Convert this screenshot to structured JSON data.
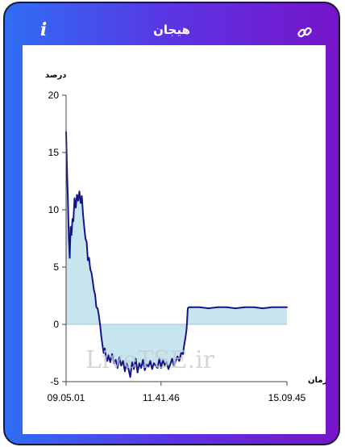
{
  "app": {
    "title": "هیجان",
    "info_icon": "info-icon",
    "link_icon": "link-icon"
  },
  "colors": {
    "gradient_start": "#2f6ef5",
    "gradient_end": "#7714c9",
    "line": "#14148c",
    "fill": "#c7e5ef"
  },
  "chart_data": {
    "type": "area",
    "title": "",
    "ylabel": "درصد",
    "xlabel": "زمان",
    "ylim": [
      -5,
      20
    ],
    "yticks": [
      20,
      15,
      10,
      5,
      0,
      -5
    ],
    "xtick_labels": [
      "09.05.01",
      "11.41.46",
      "15.09.45"
    ],
    "xlim": [
      "09.05.01",
      "15.09.45"
    ],
    "baseline": 0,
    "watermark": "LiveTSE.ir",
    "grid": false,
    "series": [
      {
        "x": [
          "09.05.01",
          "09.06.30",
          "09.08.00",
          "09.09.30",
          "09.11.00",
          "09.12.30",
          "09.14.00",
          "09.15.30",
          "09.17.00",
          "09.19.00",
          "09.21.00",
          "09.23.00",
          "09.25.00",
          "09.27.00",
          "09.29.00",
          "09.31.00",
          "09.33.00",
          "09.35.00",
          "09.37.00",
          "09.39.00",
          "09.41.00",
          "09.43.00",
          "09.45.00",
          "09.47.00",
          "09.49.00",
          "09.51.00",
          "09.53.00",
          "09.55.00",
          "09.57.00",
          "09.59.00",
          "10.01.00",
          "10.03.00",
          "10.05.00",
          "10.07.00",
          "10.09.00",
          "10.11.00",
          "10.13.00",
          "10.15.00",
          "10.18.00",
          "10.21.00",
          "10.24.00",
          "10.27.00",
          "10.30.00",
          "10.33.00",
          "10.36.00",
          "10.39.00",
          "10.42.00",
          "10.45.00",
          "10.48.00",
          "10.51.00",
          "10.54.00",
          "10.57.00",
          "11.00.00",
          "11.03.00",
          "11.06.00",
          "11.09.00",
          "11.12.00",
          "11.15.00",
          "11.18.00",
          "11.21.00",
          "11.24.00",
          "11.27.00",
          "11.30.00",
          "11.33.00",
          "11.36.00",
          "11.39.00",
          "11.41.46",
          "11.45.00",
          "11.48.00",
          "11.51.00",
          "11.54.00",
          "11.57.00",
          "12.00.00",
          "12.03.00",
          "12.06.00",
          "12.09.00",
          "12.12.00",
          "12.15.00",
          "12.18.00",
          "12.20.00",
          "12.22.00",
          "12.24.00",
          "12.26.00",
          "12.28.00",
          "12.30.00",
          "12.45.00",
          "13.00.00",
          "13.15.00",
          "13.30.00",
          "13.45.00",
          "14.00.00",
          "14.15.00",
          "14.30.00",
          "14.45.00",
          "15.00.00",
          "15.09.45"
        ],
        "y": [
          16.8,
          13.5,
          11.0,
          7.5,
          5.8,
          8.5,
          7.8,
          9.2,
          9.0,
          11.0,
          10.2,
          11.3,
          10.8,
          11.6,
          10.6,
          11.2,
          9.6,
          8.5,
          7.5,
          7.2,
          5.6,
          5.8,
          4.8,
          4.5,
          3.8,
          3.0,
          2.6,
          1.5,
          1.4,
          0.8,
          0.0,
          -1.0,
          -1.8,
          -2.5,
          -2.1,
          -2.9,
          -3.2,
          -2.7,
          -3.3,
          -2.6,
          -3.4,
          -3.1,
          -3.8,
          -2.9,
          -3.6,
          -3.2,
          -4.1,
          -3.4,
          -3.9,
          -4.6,
          -3.3,
          -3.9,
          -3.0,
          -4.2,
          -3.4,
          -3.8,
          -3.1,
          -4.0,
          -3.5,
          -3.7,
          -3.2,
          -3.9,
          -3.4,
          -3.6,
          -3.8,
          -3.0,
          -3.8,
          -3.1,
          -3.6,
          -3.3,
          -3.9,
          -3.5,
          -3.0,
          -3.6,
          -3.2,
          -2.8,
          -3.2,
          -2.5,
          -2.6,
          -1.8,
          -1.2,
          -0.4,
          1.4,
          1.5,
          1.5,
          1.5,
          1.4,
          1.5,
          1.5,
          1.4,
          1.5,
          1.5,
          1.4,
          1.5,
          1.5,
          1.5
        ]
      }
    ]
  }
}
